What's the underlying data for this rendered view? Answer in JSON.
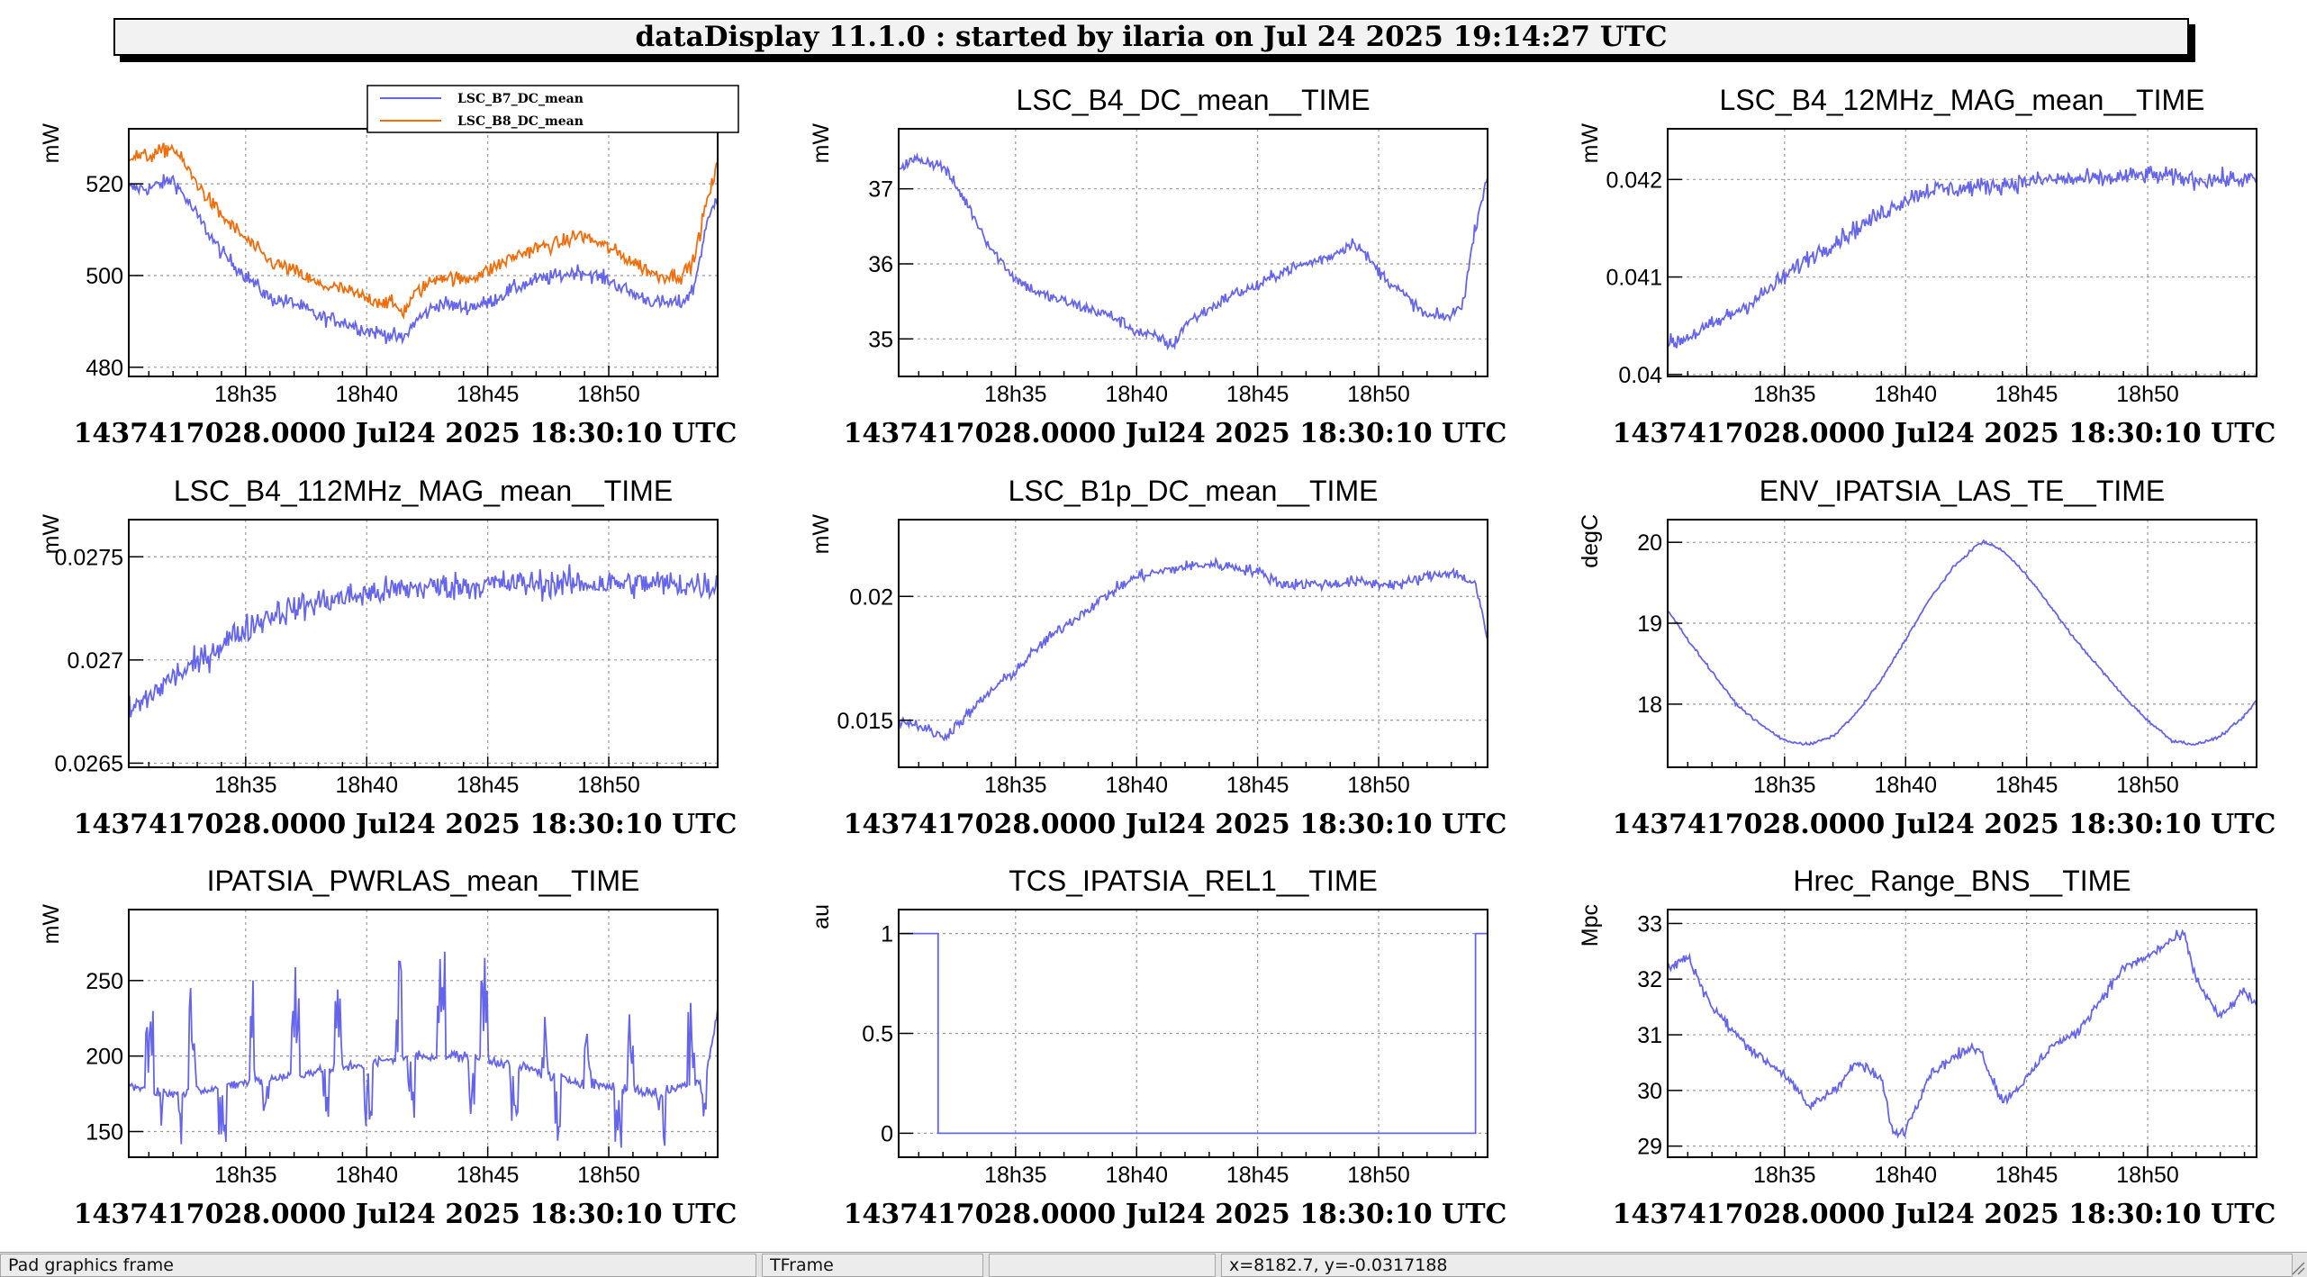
{
  "header": {
    "title": "dataDisplay 11.1.0 : started by ilaria on Jul 24 2025 19:14:27 UTC"
  },
  "statusbar": {
    "object": "Pad graphics frame",
    "class": "TFrame",
    "info": "",
    "coords": "x=8182.7, y=-0.0317188"
  },
  "colors": {
    "blue": "#6464ee",
    "orange": "#f26d0a",
    "grid": "#9a9a9a"
  },
  "time_axis": {
    "ticks": [
      {
        "minute": 35,
        "label": "18h35"
      },
      {
        "minute": 40,
        "label": "18h40"
      },
      {
        "minute": 45,
        "label": "18h45"
      },
      {
        "minute": 50,
        "label": "18h50"
      }
    ],
    "xlim_minutes": [
      30.17,
      54.5
    ],
    "start_label": "1437417028.0000  Jul24 2025 18:30:10 UTC"
  },
  "chart_data": [
    {
      "type": "line",
      "title": "",
      "ylabel": "mW",
      "ylim": [
        478,
        532
      ],
      "yticks": [
        480,
        500,
        520
      ],
      "legend": {
        "position": "top",
        "entries": [
          "LSC_B7_DC_mean",
          "LSC_B8_DC_mean"
        ]
      },
      "series": [
        {
          "name": "LSC_B7_DC_mean",
          "color": "#6464ee",
          "noise": 1.4,
          "x": [
            30.2,
            31,
            32,
            33,
            34,
            35,
            36,
            37,
            38,
            39,
            40,
            41,
            41.5,
            42,
            43,
            44,
            45,
            46,
            47,
            48,
            48.8,
            50,
            51,
            52,
            53,
            53.5,
            54,
            54.5
          ],
          "y": [
            519,
            519,
            521,
            513,
            505,
            500,
            495,
            494,
            491,
            490,
            488,
            487,
            486,
            490,
            494,
            493,
            494,
            497,
            499,
            500,
            501,
            499,
            496,
            494,
            494,
            497,
            510,
            518
          ]
        },
        {
          "name": "LSC_B8_DC_mean",
          "color": "#f26d0a",
          "noise": 1.4,
          "x": [
            30.2,
            31,
            32,
            33,
            34,
            35,
            36,
            37,
            38,
            39,
            40,
            41,
            41.5,
            42,
            43,
            44,
            45,
            46,
            47,
            48,
            48.8,
            50,
            51,
            52,
            53,
            53.5,
            54,
            54.5
          ],
          "y": [
            526,
            526,
            528,
            520,
            513,
            508,
            503,
            501,
            498,
            497,
            495,
            494,
            492,
            496,
            500,
            499,
            501,
            504,
            506,
            507,
            509,
            506,
            503,
            500,
            500,
            503,
            515,
            524
          ]
        }
      ]
    },
    {
      "type": "line",
      "title": "LSC_B4_DC_mean__TIME",
      "ylabel": "mW",
      "ylim": [
        34.5,
        37.8
      ],
      "yticks": [
        35,
        36,
        37
      ],
      "series": [
        {
          "color": "#6464ee",
          "noise": 0.07,
          "x": [
            30.2,
            31,
            32,
            33,
            34,
            35,
            36,
            37,
            38,
            39,
            40,
            41,
            41.5,
            42,
            43,
            44,
            45,
            46,
            47,
            48,
            49,
            49.5,
            50,
            51,
            52,
            53,
            53.5,
            54,
            54.5
          ],
          "y": [
            37.3,
            37.4,
            37.3,
            36.8,
            36.2,
            35.8,
            35.6,
            35.5,
            35.4,
            35.3,
            35.1,
            35.0,
            34.9,
            35.2,
            35.4,
            35.6,
            35.7,
            35.9,
            36.0,
            36.1,
            36.3,
            36.1,
            35.9,
            35.6,
            35.3,
            35.3,
            35.5,
            36.5,
            37.2
          ]
        }
      ]
    },
    {
      "type": "line",
      "title": "LSC_B4_12MHz_MAG_mean__TIME",
      "ylabel": "mW",
      "ylim": [
        0.03998,
        0.04252
      ],
      "yticks": [
        0.04,
        0.041,
        0.042
      ],
      "yticklabels": [
        "0.04",
        "0.041",
        "0.042"
      ],
      "series": [
        {
          "color": "#6464ee",
          "noise": 8e-05,
          "x": [
            30.2,
            32,
            34,
            36,
            38,
            40,
            41,
            42,
            44,
            46,
            48,
            50,
            52,
            54.5
          ],
          "y": [
            0.0403,
            0.0405,
            0.0408,
            0.0412,
            0.0415,
            0.0418,
            0.0419,
            0.0419,
            0.04195,
            0.042,
            0.042,
            0.04205,
            0.042,
            0.042
          ]
        }
      ]
    },
    {
      "type": "line",
      "title": "LSC_B4_112MHz_MAG_mean__TIME",
      "ylabel": "mW",
      "ylim": [
        0.02648,
        0.02768
      ],
      "yticks": [
        0.0265,
        0.027,
        0.0275
      ],
      "yticklabels": [
        "0.0265",
        "0.027",
        "0.0275"
      ],
      "series": [
        {
          "color": "#6464ee",
          "noise": 6e-05,
          "x": [
            30.2,
            31,
            32,
            33,
            34,
            35,
            36,
            38,
            40,
            42,
            44,
            46,
            48,
            50,
            52,
            54.5
          ],
          "y": [
            0.02675,
            0.02682,
            0.02692,
            0.02698,
            0.02708,
            0.02715,
            0.02722,
            0.02728,
            0.02732,
            0.02735,
            0.02736,
            0.02737,
            0.02737,
            0.02737,
            0.02737,
            0.02736
          ]
        }
      ]
    },
    {
      "type": "line",
      "title": "LSC_B1p_DC_mean__TIME",
      "ylabel": "mW",
      "ylim": [
        0.0131,
        0.0231
      ],
      "yticks": [
        0.015,
        0.02
      ],
      "yticklabels": [
        "0.015",
        "0.02"
      ],
      "series": [
        {
          "color": "#6464ee",
          "noise": 0.0002,
          "x": [
            30.2,
            31,
            32,
            33,
            34,
            35,
            36,
            37,
            38,
            39,
            40,
            41,
            42,
            43,
            44,
            45,
            46,
            47,
            48,
            49,
            50,
            51,
            52,
            53,
            54,
            54.5
          ],
          "y": [
            0.015,
            0.0148,
            0.0143,
            0.0152,
            0.0162,
            0.017,
            0.018,
            0.0188,
            0.0195,
            0.0202,
            0.0208,
            0.021,
            0.0212,
            0.0213,
            0.0212,
            0.021,
            0.0205,
            0.0205,
            0.0205,
            0.0206,
            0.0205,
            0.0205,
            0.0208,
            0.021,
            0.0205,
            0.0182
          ]
        }
      ]
    },
    {
      "type": "line",
      "title": "ENV_IPATSIA_LAS_TE__TIME",
      "ylabel": "degC",
      "ylim": [
        17.22,
        20.28
      ],
      "yticks": [
        18,
        19,
        20
      ],
      "series": [
        {
          "color": "#6464ee",
          "noise": 0.015,
          "x": [
            30.2,
            31,
            32,
            33,
            34,
            35,
            36,
            37,
            38,
            39,
            40,
            41,
            42,
            43,
            43.3,
            44,
            45,
            46,
            47,
            48,
            49,
            50,
            51,
            52,
            53,
            54,
            54.5
          ],
          "y": [
            19.15,
            18.8,
            18.4,
            18.0,
            17.75,
            17.55,
            17.5,
            17.6,
            17.9,
            18.3,
            18.8,
            19.3,
            19.7,
            19.98,
            20.0,
            19.9,
            19.6,
            19.2,
            18.8,
            18.45,
            18.1,
            17.8,
            17.55,
            17.5,
            17.6,
            17.85,
            18.05
          ]
        }
      ]
    },
    {
      "type": "line",
      "title": "IPATSIA_PWRLAS_mean__TIME",
      "ylabel": "mW",
      "ylim": [
        133,
        297
      ],
      "yticks": [
        150,
        200,
        250
      ],
      "series": [
        {
          "color": "#6464ee",
          "noise": 3,
          "spikes": true,
          "x": [
            30.2,
            32,
            34,
            36,
            38,
            40,
            42,
            44,
            46,
            48,
            50,
            52,
            54,
            54.5
          ],
          "y": [
            180,
            175,
            180,
            185,
            190,
            195,
            200,
            200,
            195,
            185,
            180,
            175,
            185,
            230
          ]
        }
      ]
    },
    {
      "type": "line",
      "title": "TCS_IPATSIA_REL1__TIME",
      "ylabel": "au",
      "ylim": [
        -0.12,
        1.12
      ],
      "yticks": [
        0,
        0.5,
        1
      ],
      "yticklabels": [
        "0",
        "0.5",
        "1"
      ],
      "series": [
        {
          "color": "#6464ee",
          "noise": 0,
          "step": true,
          "x": [
            30.2,
            31.8,
            31.8,
            54.0,
            54.0,
            54.5
          ],
          "y": [
            1,
            1,
            0,
            0,
            1,
            1
          ]
        }
      ]
    },
    {
      "type": "line",
      "title": "Hrec_Range_BNS__TIME",
      "ylabel": "Mpc",
      "ylim": [
        28.8,
        33.25
      ],
      "yticks": [
        29,
        30,
        31,
        32,
        33
      ],
      "series": [
        {
          "color": "#6464ee",
          "noise": 0.08,
          "x": [
            30.2,
            31,
            32,
            33,
            34,
            35,
            36,
            37,
            38,
            39,
            39.5,
            40,
            41,
            42,
            43,
            44,
            45,
            46,
            47,
            48,
            49,
            50,
            51,
            51.5,
            52,
            53,
            54,
            54.5
          ],
          "y": [
            32.2,
            32.4,
            31.5,
            31.0,
            30.6,
            30.3,
            29.7,
            30.0,
            30.5,
            30.2,
            29.2,
            29.3,
            30.3,
            30.6,
            30.8,
            29.8,
            30.2,
            30.8,
            31.0,
            31.6,
            32.2,
            32.4,
            32.7,
            32.8,
            32.0,
            31.3,
            31.8,
            31.5
          ]
        }
      ]
    }
  ]
}
